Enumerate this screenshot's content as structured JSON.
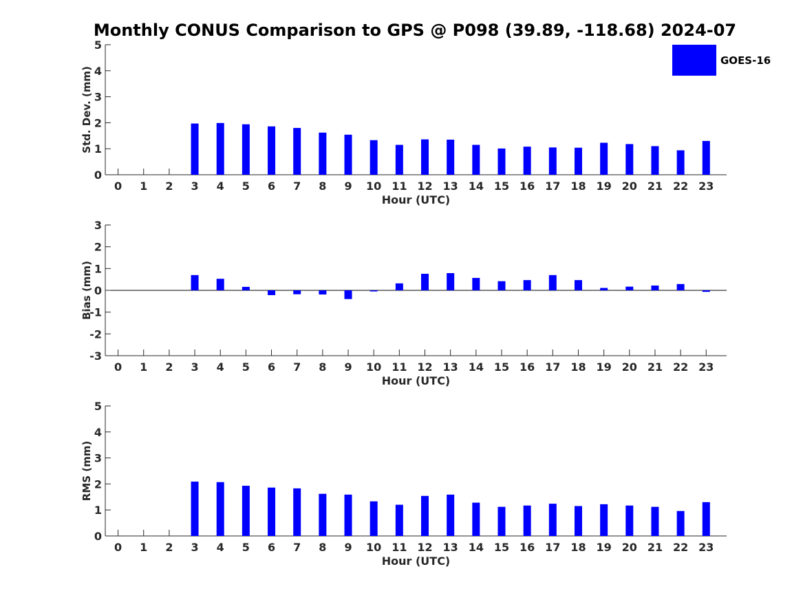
{
  "chart_data": [
    {
      "type": "bar",
      "title": "Monthly CONUS Comparison to GPS @ P098 (39.89, -118.68) 2024-07",
      "xlabel": "Hour (UTC)",
      "ylabel": "Std. Dev. (mm)",
      "ylim": [
        0,
        5
      ],
      "yticks": [
        "0",
        "1",
        "2",
        "3",
        "4",
        "5"
      ],
      "categories": [
        "0",
        "1",
        "2",
        "3",
        "4",
        "5",
        "6",
        "7",
        "8",
        "9",
        "10",
        "11",
        "12",
        "13",
        "14",
        "15",
        "16",
        "17",
        "18",
        "19",
        "20",
        "21",
        "22",
        "23"
      ],
      "series": [
        {
          "name": "GOES-16",
          "color": "#0000ff",
          "values": [
            null,
            null,
            null,
            1.97,
            1.99,
            1.94,
            1.86,
            1.8,
            1.62,
            1.54,
            1.33,
            1.15,
            1.36,
            1.35,
            1.15,
            1.01,
            1.08,
            1.05,
            1.04,
            1.23,
            1.18,
            1.1,
            0.94,
            1.3
          ]
        }
      ],
      "grid": false,
      "legend": "top-right"
    },
    {
      "type": "bar",
      "xlabel": "Hour (UTC)",
      "ylabel": "Bias (mm)",
      "ylim": [
        -3,
        3
      ],
      "yticks": [
        "-3",
        "-2",
        "-1",
        "0",
        "1",
        "2",
        "3"
      ],
      "categories": [
        "0",
        "1",
        "2",
        "3",
        "4",
        "5",
        "6",
        "7",
        "8",
        "9",
        "10",
        "11",
        "12",
        "13",
        "14",
        "15",
        "16",
        "17",
        "18",
        "19",
        "20",
        "21",
        "22",
        "23"
      ],
      "series": [
        {
          "name": "GOES-16",
          "color": "#0000ff",
          "values": [
            null,
            null,
            null,
            0.7,
            0.53,
            0.16,
            -0.22,
            -0.18,
            -0.19,
            -0.4,
            -0.05,
            0.32,
            0.76,
            0.79,
            0.57,
            0.42,
            0.47,
            0.7,
            0.47,
            0.11,
            0.17,
            0.22,
            0.29,
            -0.07
          ]
        }
      ],
      "grid": false
    },
    {
      "type": "bar",
      "xlabel": "Hour (UTC)",
      "ylabel": "RMS (mm)",
      "ylim": [
        0,
        5
      ],
      "yticks": [
        "0",
        "1",
        "2",
        "3",
        "4",
        "5"
      ],
      "categories": [
        "0",
        "1",
        "2",
        "3",
        "4",
        "5",
        "6",
        "7",
        "8",
        "9",
        "10",
        "11",
        "12",
        "13",
        "14",
        "15",
        "16",
        "17",
        "18",
        "19",
        "20",
        "21",
        "22",
        "23"
      ],
      "series": [
        {
          "name": "GOES-16",
          "color": "#0000ff",
          "values": [
            null,
            null,
            null,
            2.09,
            2.07,
            1.93,
            1.86,
            1.83,
            1.62,
            1.59,
            1.33,
            1.2,
            1.54,
            1.59,
            1.28,
            1.12,
            1.17,
            1.24,
            1.15,
            1.22,
            1.17,
            1.12,
            0.96,
            1.3
          ]
        }
      ],
      "grid": false
    }
  ],
  "legend": {
    "label": "GOES-16",
    "color": "#0000ff"
  }
}
